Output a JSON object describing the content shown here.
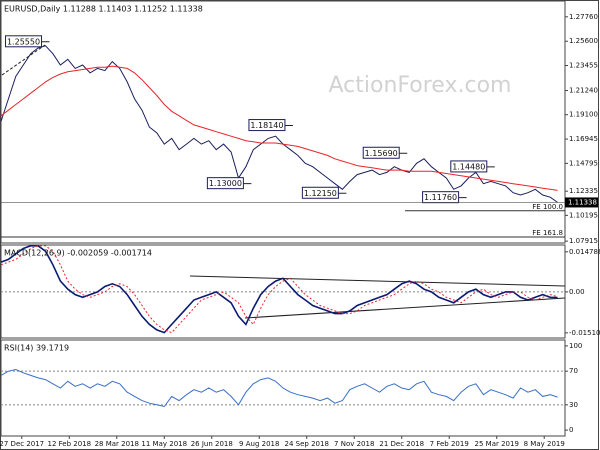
{
  "watermark": "ActionForex.com",
  "chart_data": [
    {
      "type": "line",
      "title": "EURUSD,Daily 1.11288 1.11403 1.11252 1.11338",
      "x": [
        0,
        5,
        10,
        15,
        20,
        25,
        30,
        35,
        40,
        45,
        50,
        55,
        60,
        65,
        70,
        75,
        80,
        85,
        90,
        95,
        100,
        105,
        110,
        115,
        120,
        125,
        130,
        135,
        140,
        145,
        150,
        155,
        160,
        165,
        170,
        175,
        180,
        185,
        190,
        195,
        200,
        205,
        210,
        215,
        220,
        225,
        230,
        235,
        240,
        245,
        250,
        255,
        260,
        265,
        270,
        275,
        280,
        285,
        290,
        295,
        300,
        305,
        310,
        315,
        320,
        325,
        330,
        335,
        340,
        345,
        350,
        355,
        360,
        365,
        370,
        375
      ],
      "xlim": [
        0,
        380
      ],
      "ylim": [
        1.0775,
        1.2916
      ],
      "yticks": [
        {
          "value": 1.2776,
          "label": "1.27760"
        },
        {
          "value": 1.256,
          "label": "1.25600"
        },
        {
          "value": 1.23455,
          "label": "1.23455"
        },
        {
          "value": 1.2124,
          "label": "1.21240"
        },
        {
          "value": 1.191,
          "label": "1.19100"
        },
        {
          "value": 1.16945,
          "label": "1.16945"
        },
        {
          "value": 1.14795,
          "label": "1.14795"
        },
        {
          "value": 1.12335,
          "label": "1.12335"
        },
        {
          "value": 1.10195,
          "label": "1.10195"
        },
        {
          "value": 1.07915,
          "label": "1.07915"
        }
      ],
      "series": [
        {
          "color": "#1b1f5c",
          "values": [
            1.185,
            1.205,
            1.225,
            1.235,
            1.245,
            1.25,
            1.252,
            1.245,
            1.235,
            1.24,
            1.232,
            1.235,
            1.228,
            1.232,
            1.23,
            1.238,
            1.232,
            1.22,
            1.205,
            1.195,
            1.18,
            1.175,
            1.165,
            1.17,
            1.16,
            1.165,
            1.17,
            1.165,
            1.168,
            1.16,
            1.165,
            1.158,
            1.135,
            1.145,
            1.16,
            1.165,
            1.17,
            1.172,
            1.165,
            1.16,
            1.155,
            1.148,
            1.145,
            1.14,
            1.135,
            1.13,
            1.125,
            1.132,
            1.138,
            1.14,
            1.142,
            1.138,
            1.14,
            1.145,
            1.142,
            1.14,
            1.148,
            1.152,
            1.145,
            1.14,
            1.135,
            1.125,
            1.128,
            1.135,
            1.14,
            1.13,
            1.132,
            1.13,
            1.128,
            1.122,
            1.12,
            1.122,
            1.125,
            1.12,
            1.118,
            1.1134
          ]
        },
        {
          "color": "#e8252a",
          "values": [
            1.19,
            1.195,
            1.2,
            1.205,
            1.21,
            1.215,
            1.22,
            1.224,
            1.227,
            1.229,
            1.23,
            1.231,
            1.232,
            1.233,
            1.233,
            1.234,
            1.233,
            1.232,
            1.228,
            1.222,
            1.215,
            1.208,
            1.2,
            1.194,
            1.19,
            1.186,
            1.182,
            1.18,
            1.178,
            1.176,
            1.174,
            1.172,
            1.17,
            1.168,
            1.167,
            1.166,
            1.166,
            1.166,
            1.165,
            1.164,
            1.163,
            1.161,
            1.159,
            1.157,
            1.155,
            1.152,
            1.15,
            1.148,
            1.146,
            1.145,
            1.144,
            1.143,
            1.142,
            1.142,
            1.142,
            1.141,
            1.141,
            1.141,
            1.141,
            1.14,
            1.139,
            1.138,
            1.137,
            1.136,
            1.135,
            1.134,
            1.133,
            1.132,
            1.131,
            1.13,
            1.129,
            1.128,
            1.127,
            1.126,
            1.125,
            1.124
          ]
        }
      ],
      "last_price": {
        "value": 1.11338,
        "label": "1.11338"
      },
      "annotations": [
        {
          "x": 30,
          "value": 1.2555,
          "label": "1.25550"
        },
        {
          "x": 194,
          "value": 1.1814,
          "label": "1.18140"
        },
        {
          "x": 166,
          "value": 1.13,
          "label": "1.13000"
        },
        {
          "x": 230,
          "value": 1.1215,
          "label": "1.12150"
        },
        {
          "x": 271,
          "value": 1.1569,
          "label": "1.15690"
        },
        {
          "x": 330,
          "value": 1.1448,
          "label": "1.14480"
        },
        {
          "x": 311,
          "value": 1.1176,
          "label": "1.11760"
        }
      ],
      "levels": [
        {
          "value": 1.106,
          "label": "FE 100.0"
        },
        {
          "value": 1.0828,
          "label": "FE 161.8"
        }
      ]
    },
    {
      "type": "line",
      "title": "MACD(12,26,9) -0.002059 -0.001714",
      "x": [
        0,
        5,
        10,
        15,
        20,
        25,
        30,
        35,
        40,
        45,
        50,
        55,
        60,
        65,
        70,
        75,
        80,
        85,
        90,
        95,
        100,
        105,
        110,
        115,
        120,
        125,
        130,
        135,
        140,
        145,
        150,
        155,
        160,
        165,
        170,
        175,
        180,
        185,
        190,
        195,
        200,
        205,
        210,
        215,
        220,
        225,
        230,
        235,
        240,
        245,
        250,
        255,
        260,
        265,
        270,
        275,
        280,
        285,
        290,
        295,
        300,
        305,
        310,
        315,
        320,
        325,
        330,
        335,
        340,
        345,
        350,
        355,
        360,
        365,
        370,
        375
      ],
      "xlim": [
        0,
        380
      ],
      "ylim": [
        -0.017,
        0.0173
      ],
      "yticks": [
        0.014786,
        {
          "value": 0,
          "label": "0.00"
        },
        -0.015107
      ],
      "dashed_levels": [
        0
      ],
      "series": [
        {
          "color": "#0b1a73",
          "values": [
            0.011,
            0.012,
            0.014,
            0.016,
            0.017,
            0.017,
            0.015,
            0.01,
            0.004,
            0.001,
            -0.001,
            -0.002,
            -0.001,
            0.0,
            0.002,
            0.003,
            0.002,
            -0.001,
            -0.005,
            -0.009,
            -0.012,
            -0.014,
            -0.015,
            -0.012,
            -0.009,
            -0.006,
            -0.003,
            -0.002,
            -0.001,
            0.0,
            -0.002,
            -0.004,
            -0.009,
            -0.012,
            -0.006,
            -0.001,
            0.002,
            0.004,
            0.005,
            0.002,
            -0.001,
            -0.003,
            -0.005,
            -0.006,
            -0.007,
            -0.008,
            -0.008,
            -0.007,
            -0.005,
            -0.004,
            -0.003,
            -0.002,
            -0.001,
            0.001,
            0.003,
            0.004,
            0.003,
            0.001,
            0.0,
            -0.002,
            -0.003,
            -0.004,
            -0.002,
            0.0,
            0.001,
            -0.001,
            -0.002,
            -0.001,
            0.0,
            0.0,
            -0.002,
            -0.003,
            -0.002,
            -0.001,
            -0.002,
            -0.002059
          ]
        },
        {
          "color": "#e8252a",
          "dashed": true,
          "values": [
            0.01,
            0.011,
            0.012,
            0.014,
            0.016,
            0.017,
            0.017,
            0.015,
            0.01,
            0.004,
            0.001,
            -0.001,
            -0.002,
            -0.001,
            0.0,
            0.002,
            0.003,
            0.002,
            -0.001,
            -0.005,
            -0.009,
            -0.012,
            -0.014,
            -0.015,
            -0.012,
            -0.009,
            -0.006,
            -0.003,
            -0.002,
            -0.001,
            0.0,
            -0.002,
            -0.004,
            -0.009,
            -0.012,
            -0.006,
            -0.001,
            0.002,
            0.004,
            0.005,
            0.002,
            -0.001,
            -0.003,
            -0.005,
            -0.006,
            -0.007,
            -0.008,
            -0.008,
            -0.007,
            -0.005,
            -0.004,
            -0.003,
            -0.002,
            -0.001,
            0.001,
            0.003,
            0.004,
            0.003,
            0.001,
            0.0,
            -0.002,
            -0.003,
            -0.004,
            -0.002,
            0.0,
            0.001,
            -0.001,
            -0.002,
            -0.001,
            0.0,
            0.0,
            -0.002,
            -0.003,
            -0.002,
            -0.001,
            -0.001714
          ]
        }
      ]
    },
    {
      "type": "line",
      "title": "RSI(14) 39.1719",
      "x": [
        0,
        5,
        10,
        15,
        20,
        25,
        30,
        35,
        40,
        45,
        50,
        55,
        60,
        65,
        70,
        75,
        80,
        85,
        90,
        95,
        100,
        105,
        110,
        115,
        120,
        125,
        130,
        135,
        140,
        145,
        150,
        155,
        160,
        165,
        170,
        175,
        180,
        185,
        190,
        195,
        200,
        205,
        210,
        215,
        220,
        225,
        230,
        235,
        240,
        245,
        250,
        255,
        260,
        265,
        270,
        275,
        280,
        285,
        290,
        295,
        300,
        305,
        310,
        315,
        320,
        325,
        330,
        335,
        340,
        345,
        350,
        355,
        360,
        365,
        370,
        375
      ],
      "xlim": [
        0,
        380
      ],
      "ylim": [
        -7,
        107
      ],
      "yticks": [
        100,
        70,
        30,
        0
      ],
      "dashed_levels": [
        70,
        30
      ],
      "xticks": [
        {
          "value": 14,
          "label": "27 Dec 2017"
        },
        {
          "value": 46,
          "label": "12 Feb 2018"
        },
        {
          "value": 78,
          "label": "28 Mar 2018"
        },
        {
          "value": 110,
          "label": "11 May 2018"
        },
        {
          "value": 142,
          "label": "26 Jun 2018"
        },
        {
          "value": 174,
          "label": "9 Aug 2018"
        },
        {
          "value": 206,
          "label": "24 Sep 2018"
        },
        {
          "value": 238,
          "label": "7 Nov 2018"
        },
        {
          "value": 270,
          "label": "21 Dec 2018"
        },
        {
          "value": 302,
          "label": "7 Feb 2019"
        },
        {
          "value": 334,
          "label": "25 Mar 2019"
        },
        {
          "value": 366,
          "label": "8 May 2019"
        }
      ],
      "series": [
        {
          "color": "#3a6fc8",
          "values": [
            65,
            70,
            72,
            68,
            65,
            62,
            60,
            55,
            50,
            58,
            52,
            55,
            50,
            55,
            52,
            58,
            55,
            45,
            40,
            35,
            32,
            30,
            28,
            40,
            35,
            42,
            48,
            45,
            50,
            45,
            48,
            40,
            30,
            45,
            55,
            60,
            62,
            58,
            50,
            45,
            42,
            40,
            38,
            35,
            38,
            32,
            35,
            48,
            52,
            55,
            50,
            45,
            52,
            55,
            50,
            48,
            55,
            58,
            45,
            42,
            40,
            35,
            45,
            52,
            55,
            42,
            48,
            45,
            42,
            38,
            50,
            45,
            48,
            40,
            42,
            39.1719
          ]
        }
      ]
    }
  ]
}
